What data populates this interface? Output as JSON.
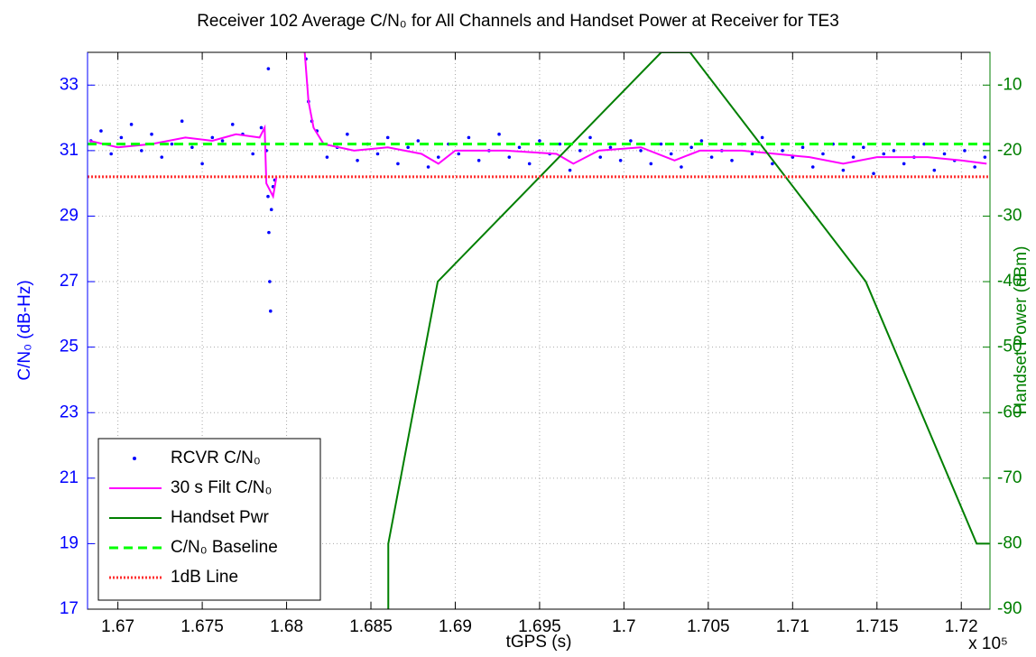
{
  "chart_data": {
    "type": "line",
    "title": "Receiver 102 Average C/N₀ for All Channels and Handset Power at Receiver for TE3",
    "x_label": "tGPS (s)",
    "x_multiplier": "x 10⁵",
    "y_label": "C/N₀ (dB-Hz)",
    "y2_label": "Handset Power (dBm)",
    "xlim": [
      166820,
      172170
    ],
    "xticks": [
      {
        "value": 167000,
        "label": "1.67"
      },
      {
        "value": 167500,
        "label": "1.675"
      },
      {
        "value": 168000,
        "label": "1.68"
      },
      {
        "value": 168500,
        "label": "1.685"
      },
      {
        "value": 169000,
        "label": "1.69"
      },
      {
        "value": 169500,
        "label": "1.695"
      },
      {
        "value": 170000,
        "label": "1.7"
      },
      {
        "value": 170500,
        "label": "1.705"
      },
      {
        "value": 171000,
        "label": "1.71"
      },
      {
        "value": 171500,
        "label": "1.715"
      },
      {
        "value": 172000,
        "label": "1.72"
      }
    ],
    "ylim": [
      17,
      34
    ],
    "yticks": [
      17,
      19,
      21,
      23,
      25,
      27,
      29,
      31,
      33
    ],
    "y2lim": [
      -90,
      -5
    ],
    "y2ticks": [
      -90,
      -80,
      -70,
      -60,
      -50,
      -40,
      -30,
      -20,
      -10
    ],
    "grid": true,
    "legend": "lower left",
    "series": [
      {
        "name": "RCVR C/N₀",
        "color": "#0000ff",
        "style": "markers",
        "x": [
          166840,
          166900,
          166960,
          167020,
          167080,
          167140,
          167200,
          167260,
          167320,
          167380,
          167440,
          167500,
          167560,
          167620,
          167680,
          167740,
          167800,
          167850,
          167880,
          167892,
          167890,
          167895,
          167900,
          167905,
          167910,
          167920,
          167930,
          168115,
          168130,
          168150,
          168180,
          168240,
          168300,
          168360,
          168420,
          168480,
          168540,
          168600,
          168660,
          168720,
          168780,
          168840,
          168900,
          168960,
          169020,
          169080,
          169140,
          169200,
          169260,
          169320,
          169380,
          169440,
          169500,
          169560,
          169620,
          169680,
          169740,
          169800,
          169860,
          169920,
          169980,
          170040,
          170100,
          170160,
          170220,
          170280,
          170340,
          170400,
          170460,
          170520,
          170580,
          170640,
          170700,
          170760,
          170820,
          170880,
          170940,
          171000,
          171060,
          171120,
          171180,
          171240,
          171300,
          171360,
          171420,
          171480,
          171540,
          171600,
          171660,
          171720,
          171780,
          171840,
          171900,
          171960,
          172020,
          172080,
          172140
        ],
        "values": [
          31.3,
          31.6,
          30.9,
          31.4,
          31.8,
          31.0,
          31.5,
          30.8,
          31.2,
          31.9,
          31.1,
          30.6,
          31.4,
          31.3,
          31.8,
          31.5,
          30.9,
          31.7,
          31.0,
          33.5,
          29.6,
          28.5,
          27.0,
          26.1,
          29.2,
          29.9,
          30.1,
          33.8,
          32.5,
          31.9,
          31.6,
          30.8,
          31.1,
          31.5,
          30.7,
          31.2,
          30.9,
          31.4,
          30.6,
          31.1,
          31.3,
          30.5,
          30.8,
          31.2,
          30.9,
          31.4,
          30.7,
          31.0,
          31.5,
          30.8,
          31.1,
          30.6,
          31.3,
          30.9,
          31.2,
          30.4,
          31.0,
          31.4,
          30.8,
          31.1,
          30.7,
          31.3,
          31.0,
          30.6,
          31.2,
          30.9,
          30.5,
          31.1,
          31.3,
          30.8,
          31.0,
          30.7,
          31.2,
          30.9,
          31.4,
          30.6,
          31.0,
          30.8,
          31.1,
          30.5,
          30.9,
          31.2,
          30.4,
          30.8,
          31.1,
          30.3,
          30.9,
          31.0,
          30.6,
          30.8,
          31.2,
          30.4,
          30.9,
          30.7,
          31.0,
          30.5,
          30.8
        ]
      },
      {
        "name": "30 s Filt C/N₀",
        "color": "#ff00ff",
        "style": "line",
        "x": [
          166830,
          167000,
          167200,
          167400,
          167560,
          167700,
          167840,
          167870,
          167880,
          167920,
          167940,
          168050,
          168100,
          168130,
          168160,
          168220,
          168400,
          168600,
          168800,
          168900,
          169000,
          169300,
          169600,
          169700,
          169850,
          170100,
          170300,
          170450,
          170700,
          170900,
          171100,
          171300,
          171500,
          171800,
          172000,
          172150
        ],
        "values": [
          31.3,
          31.1,
          31.2,
          31.4,
          31.3,
          31.5,
          31.4,
          31.7,
          30.0,
          29.6,
          30.2,
          null,
          34.5,
          32.5,
          31.7,
          31.2,
          31.0,
          31.1,
          30.9,
          30.6,
          31.0,
          31.0,
          30.9,
          30.6,
          31.0,
          31.1,
          30.7,
          31.0,
          31.0,
          30.9,
          30.8,
          30.6,
          30.8,
          30.8,
          30.7,
          30.6
        ]
      },
      {
        "name": "Handset Pwr",
        "color": "#007f00",
        "style": "line",
        "axis": "y2",
        "x": [
          168603,
          168603,
          168896,
          170221,
          170392,
          171434,
          172091,
          172166
        ],
        "values": [
          -90,
          -80,
          -40,
          -5,
          -5,
          -40,
          -80,
          -80
        ]
      },
      {
        "name": "C/N₀ Baseline",
        "color": "#00ff00",
        "style": "dashed",
        "x": [
          166820,
          172170
        ],
        "values": [
          31.2,
          31.2
        ]
      },
      {
        "name": "1dB Line",
        "color": "#ff3030",
        "style": "dotted",
        "x": [
          166820,
          172170
        ],
        "values": [
          30.2,
          30.2
        ]
      }
    ]
  }
}
